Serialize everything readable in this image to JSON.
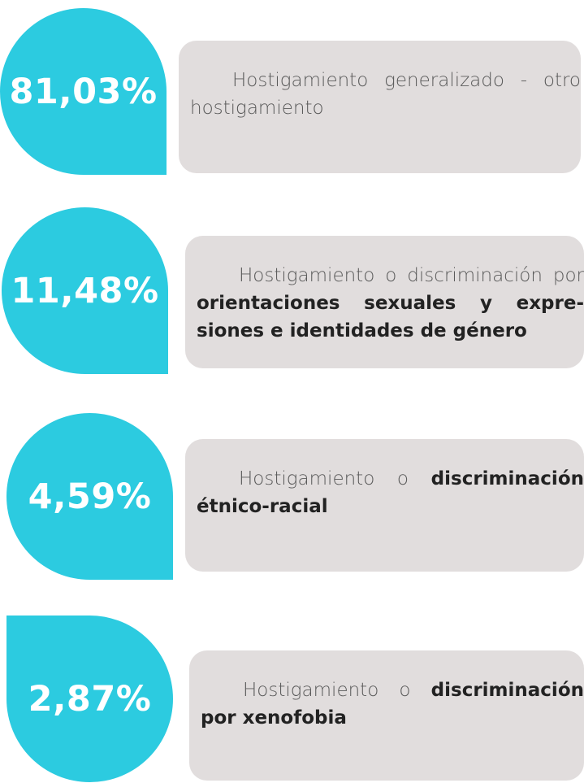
{
  "items": [
    {
      "percent": "81,03%",
      "text": [
        {
          "t": "Hostigamiento generalizado - otro hostigamiento",
          "bold": false
        }
      ]
    },
    {
      "percent": "11,48%",
      "text": [
        {
          "t": "Hostigamiento o discriminación por ",
          "bold": false
        },
        {
          "t": "orientaciones sexuales y expre-siones e identidades de género",
          "bold": true
        }
      ]
    },
    {
      "percent": "4,59%",
      "text": [
        {
          "t": "Hostigamiento o ",
          "bold": false
        },
        {
          "t": "discriminación étnico-racial",
          "bold": true
        }
      ]
    },
    {
      "percent": "2,87%",
      "text": [
        {
          "t": "Hostigamiento o ",
          "bold": false
        },
        {
          "t": "discriminación por xenofobia",
          "bold": true
        }
      ]
    }
  ]
}
